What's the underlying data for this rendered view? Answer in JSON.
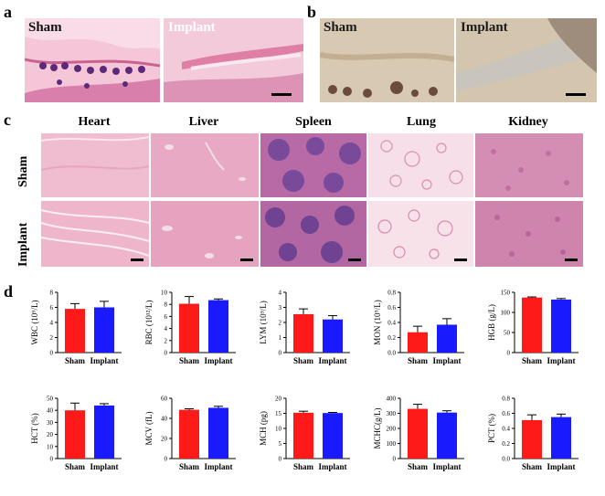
{
  "panels": {
    "a": {
      "letter": "a",
      "left_label": "Sham",
      "right_label": "Implant"
    },
    "b": {
      "letter": "b",
      "left_label": "Sham",
      "right_label": "Implant"
    },
    "c": {
      "letter": "c",
      "columns": [
        "Heart",
        "Liver",
        "Spleen",
        "Lung",
        "Kidney"
      ],
      "rows": [
        "Sham",
        "Implant"
      ]
    },
    "d": {
      "letter": "d"
    }
  },
  "chart_data": [
    {
      "type": "bar",
      "categories": [
        "Sham",
        "Implant"
      ],
      "values": [
        5.8,
        6.0
      ],
      "errors": [
        0.7,
        0.8
      ],
      "ylabel": "WBC (10⁹/L)",
      "ylim": [
        0,
        8
      ],
      "yticks": [
        0,
        2,
        4,
        6,
        8
      ]
    },
    {
      "type": "bar",
      "categories": [
        "Sham",
        "Implant"
      ],
      "values": [
        8.1,
        8.7
      ],
      "errors": [
        1.2,
        0.2
      ],
      "ylabel": "RBC (10¹²/L)",
      "ylim": [
        0,
        10
      ],
      "yticks": [
        0,
        2,
        4,
        6,
        8,
        10
      ]
    },
    {
      "type": "bar",
      "categories": [
        "Sham",
        "Implant"
      ],
      "values": [
        2.55,
        2.2
      ],
      "errors": [
        0.35,
        0.25
      ],
      "ylabel": "LYM (10⁹/L)",
      "ylim": [
        0,
        4
      ],
      "yticks": [
        0,
        1,
        2,
        3,
        4
      ]
    },
    {
      "type": "bar",
      "categories": [
        "Sham",
        "Implant"
      ],
      "values": [
        0.27,
        0.37
      ],
      "errors": [
        0.08,
        0.08
      ],
      "ylabel": "MON (10⁹/L)",
      "ylim": [
        0,
        0.8
      ],
      "yticks": [
        "0.0",
        "0.2",
        "0.4",
        "0.6",
        "0.8"
      ]
    },
    {
      "type": "bar",
      "categories": [
        "Sham",
        "Implant"
      ],
      "values": [
        137,
        132
      ],
      "errors": [
        1.5,
        2.5
      ],
      "ylabel": "HGB (g/L)",
      "ylim": [
        0,
        150
      ],
      "yticks": [
        0,
        50,
        100,
        150
      ]
    },
    {
      "type": "bar",
      "categories": [
        "Sham",
        "Implant"
      ],
      "values": [
        40,
        44
      ],
      "errors": [
        6,
        1.5
      ],
      "ylabel": "HCT (%)",
      "ylim": [
        0,
        50
      ],
      "yticks": [
        0,
        10,
        20,
        30,
        40,
        50
      ]
    },
    {
      "type": "bar",
      "categories": [
        "Sham",
        "Implant"
      ],
      "values": [
        48.5,
        50.5
      ],
      "errors": [
        1,
        1.5
      ],
      "ylabel": "MCV (fL)",
      "ylim": [
        0,
        60
      ],
      "yticks": [
        0,
        20,
        40,
        60
      ]
    },
    {
      "type": "bar",
      "categories": [
        "Sham",
        "Implant"
      ],
      "values": [
        15.2,
        15.1
      ],
      "errors": [
        0.5,
        0.2
      ],
      "ylabel": "MCH (pg)",
      "ylim": [
        0,
        20
      ],
      "yticks": [
        0,
        5,
        10,
        15,
        20
      ]
    },
    {
      "type": "bar",
      "categories": [
        "Sham",
        "Implant"
      ],
      "values": [
        330,
        305
      ],
      "errors": [
        30,
        12
      ],
      "ylabel": "MCHC(g/L)",
      "ylim": [
        0,
        400
      ],
      "yticks": [
        0,
        100,
        200,
        300,
        400
      ]
    },
    {
      "type": "bar",
      "categories": [
        "Sham",
        "Implant"
      ],
      "values": [
        0.51,
        0.55
      ],
      "errors": [
        0.07,
        0.04
      ],
      "ylabel": "PCT (%)",
      "ylim": [
        0,
        0.8
      ],
      "yticks": [
        "0.0",
        "0.2",
        "0.4",
        "0.6",
        "0.8"
      ]
    }
  ],
  "colors": {
    "sham": "#ff1a1a",
    "implant": "#1a1aff",
    "he_pink": "#e8a7c4",
    "ihc_bg": "#d9cbb3"
  }
}
